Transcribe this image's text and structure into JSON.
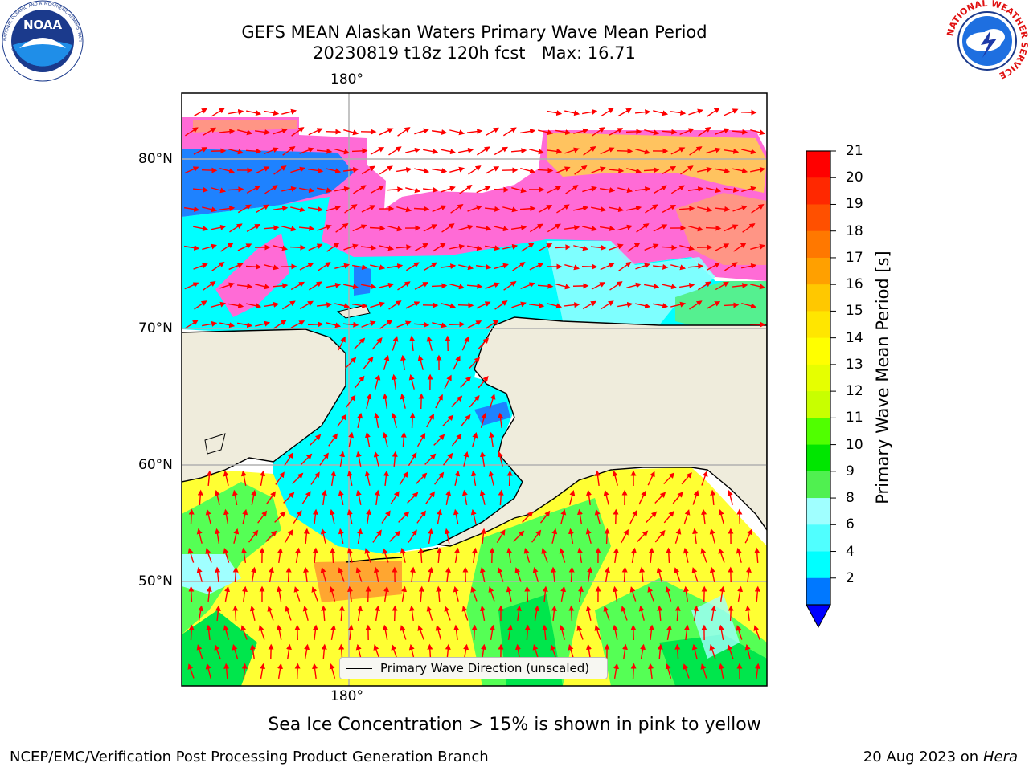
{
  "header": {
    "title_line1": "GEFS MEAN Alaskan Waters Primary Wave Mean Period",
    "title_line2": "20230819 t18z 120h fcst   Max: 16.71"
  },
  "logos": {
    "noaa": {
      "text": "NOAA",
      "ring_text": "NATIONAL OCEANIC AND ATMOSPHERIC ADMINISTRATION",
      "ring_bottom": "U.S. DEPARTMENT OF COMMERCE"
    },
    "nws": {
      "ring_text": "NATIONAL WEATHER SERVICE"
    }
  },
  "map": {
    "longitude_labels": {
      "top": "180°",
      "bottom": "180°"
    },
    "latitude_labels": [
      "80°N",
      "70°N",
      "60°N",
      "50°N"
    ],
    "legend_label": "Primary Wave Direction (unscaled)",
    "colors": {
      "land": "#efecdc",
      "ice_pink": "#ff66d9",
      "ice_orange": "#ffb060",
      "ice_yellow": "#ffe54a",
      "water_low": "#00ffff",
      "water_blue": "#1e82ff",
      "swell_yellow": "#ffff33",
      "swell_green": "#55ff55",
      "arrow": "#ff0000"
    }
  },
  "colorbar": {
    "label": "Primary Wave Mean Period [s]",
    "ticks": [
      "21",
      "20",
      "19",
      "18",
      "17",
      "16",
      "15",
      "14",
      "13",
      "12",
      "11",
      "10",
      "9",
      "8",
      "6",
      "4",
      "2"
    ],
    "colors": [
      "#ff0000",
      "#ff2800",
      "#ff5000",
      "#ff7800",
      "#ffa000",
      "#ffc800",
      "#ffe600",
      "#ffff00",
      "#e6ff00",
      "#c8ff00",
      "#50ff00",
      "#00e600",
      "#50f050",
      "#a0ffff",
      "#50ffff",
      "#00ffff",
      "#0078ff"
    ],
    "extend_color": "#0000ff"
  },
  "captions": {
    "sea_ice": "Sea Ice Concentration > 15% is shown in pink to yellow",
    "footer_left": "NCEP/EMC/Verification Post Processing Product Generation Branch",
    "footer_date": "20 Aug 2023 on",
    "footer_machine": "Hera"
  }
}
